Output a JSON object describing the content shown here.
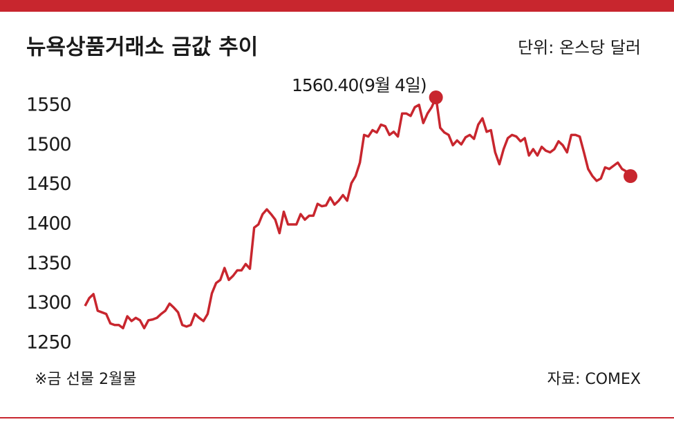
{
  "chart_data": {
    "type": "line",
    "title": "뉴욕상품거래소 금값 추이",
    "subtitle": "단위: 온스당 달러",
    "note": "※금 선물 2월물",
    "source": "자료: COMEX",
    "color": "#c8262e",
    "grid": false,
    "ylim": [
      1240,
      1570
    ],
    "yticks": [
      1250,
      1300,
      1350,
      1400,
      1450,
      1500,
      1550
    ],
    "values": [
      1297,
      1307,
      1312,
      1291,
      1289,
      1287,
      1275,
      1273,
      1273,
      1269,
      1284,
      1278,
      1282,
      1279,
      1269,
      1279,
      1280,
      1282,
      1287,
      1291,
      1300,
      1295,
      1289,
      1273,
      1271,
      1273,
      1287,
      1282,
      1278,
      1287,
      1313,
      1326,
      1330,
      1345,
      1330,
      1335,
      1342,
      1342,
      1350,
      1344,
      1396,
      1400,
      1413,
      1419,
      1413,
      1406,
      1389,
      1416,
      1400,
      1400,
      1400,
      1413,
      1406,
      1411,
      1411,
      1426,
      1423,
      1424,
      1434,
      1425,
      1430,
      1437,
      1430,
      1452,
      1461,
      1478,
      1513,
      1511,
      1519,
      1516,
      1526,
      1524,
      1513,
      1517,
      1511,
      1540,
      1540,
      1537,
      1548,
      1551,
      1528,
      1540,
      1548,
      1560.4,
      1522,
      1516,
      1513,
      1500,
      1506,
      1501,
      1510,
      1513,
      1508,
      1526,
      1534,
      1517,
      1519,
      1491,
      1476,
      1495,
      1509,
      1513,
      1511,
      1505,
      1509,
      1487,
      1495,
      1487,
      1498,
      1493,
      1491,
      1495,
      1505,
      1500,
      1491,
      1513,
      1513,
      1511,
      1491,
      1470,
      1461,
      1455,
      1458,
      1472,
      1470,
      1474,
      1478,
      1470,
      1467,
      1461
    ],
    "value_labels": [
      null,
      null,
      null,
      null,
      null,
      null,
      null,
      null,
      null,
      null,
      null,
      null,
      null,
      null,
      null,
      null,
      null,
      null,
      null,
      null,
      null,
      null,
      null,
      null,
      null,
      null,
      null,
      null,
      null,
      null,
      null,
      null,
      null,
      null,
      null,
      null,
      null,
      null,
      null,
      null,
      null,
      null,
      null,
      null,
      null,
      null,
      null,
      null,
      null,
      null,
      null,
      null,
      null,
      null,
      null,
      null,
      null,
      null,
      null,
      null,
      null,
      null,
      null,
      null,
      null,
      null,
      null,
      null,
      null,
      null,
      null,
      null,
      null,
      null,
      null,
      null,
      null,
      null,
      null,
      null,
      null,
      null,
      null,
      "1560.40(9월 4일)",
      null,
      null,
      null,
      null,
      null,
      null,
      null,
      null,
      null,
      null,
      null,
      null,
      null,
      null,
      null,
      null,
      null,
      null,
      null,
      null,
      null,
      null,
      null,
      null,
      null,
      null,
      null,
      null,
      null,
      null,
      null,
      null,
      null,
      null,
      null,
      null,
      null,
      null,
      null,
      null,
      null,
      null,
      null,
      null,
      null,
      null
    ]
  }
}
